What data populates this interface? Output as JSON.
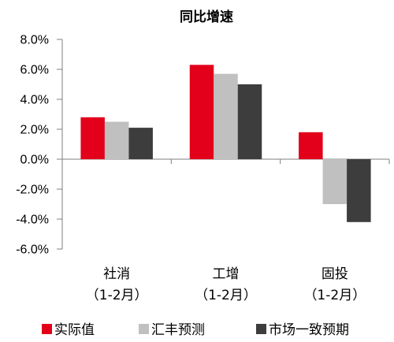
{
  "chart_data": {
    "type": "bar",
    "title": "同比增速",
    "categories": [
      {
        "name": "社消",
        "sub": "（1-2月）"
      },
      {
        "name": "工增",
        "sub": "（1-2月）"
      },
      {
        "name": "固投",
        "sub": "（1-2月）"
      }
    ],
    "series": [
      {
        "name": "实际值",
        "color": "#e2001a",
        "values": [
          2.8,
          6.3,
          1.8
        ]
      },
      {
        "name": "汇丰预测",
        "color": "#c0c0c0",
        "values": [
          2.5,
          5.7,
          -3.0
        ]
      },
      {
        "name": "市场一致预期",
        "color": "#3d3d3d",
        "values": [
          2.1,
          5.0,
          -4.2
        ]
      }
    ],
    "y_ticks": [
      "8.0%",
      "6.0%",
      "4.0%",
      "2.0%",
      "0.0%",
      "-2.0%",
      "-4.0%",
      "-6.0%"
    ],
    "ylim": [
      -6,
      8
    ],
    "xlabel": "",
    "ylabel": "",
    "grid": false,
    "legend_position": "bottom"
  }
}
